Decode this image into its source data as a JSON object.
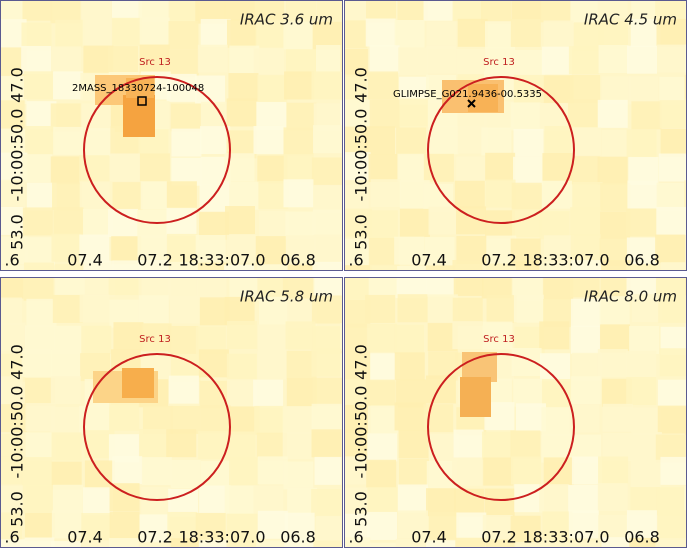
{
  "panels": [
    {
      "title": "IRAC 3.6 um",
      "source": "Src 13",
      "catalog": "2MASS_18330724-100048"
    },
    {
      "title": "IRAC 4.5 um",
      "source": "Src 13",
      "catalog": "GLIMPSE_G021.9436-00.5335"
    },
    {
      "title": "IRAC 5.8 um",
      "source": "Src 13"
    },
    {
      "title": "IRAC 8.0 um",
      "source": "Src 13"
    }
  ],
  "axes": {
    "x_ticks": [
      ".6",
      "07.4",
      "07.2",
      "18:33:07.0",
      "06.8"
    ],
    "y_ticks": [
      "47.0",
      "-10:00:50.0",
      "53.0"
    ]
  }
}
